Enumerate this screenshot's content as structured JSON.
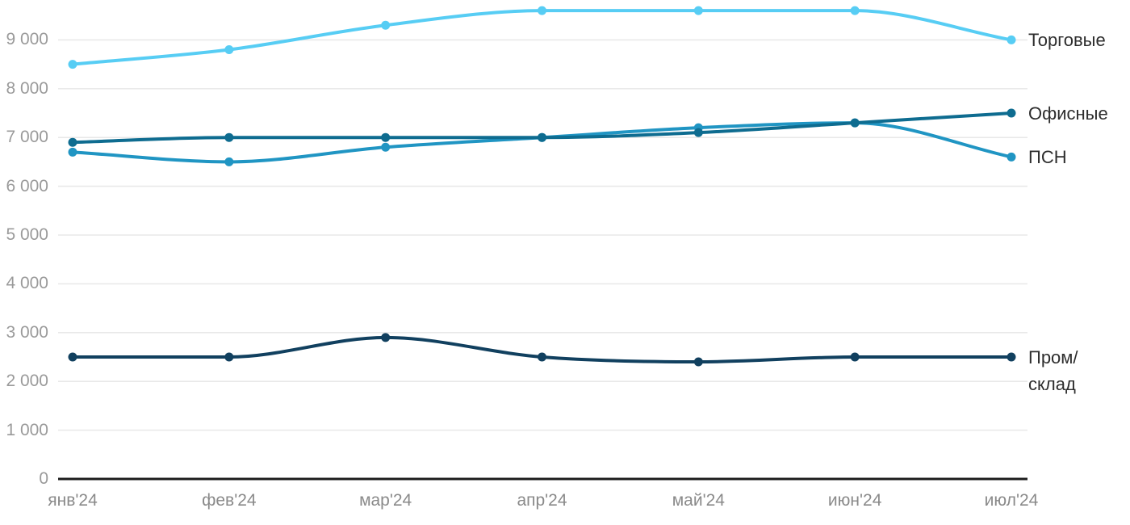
{
  "chart_data": {
    "type": "line",
    "title": "",
    "x_categories": [
      "янв'24",
      "фев'24",
      "мар'24",
      "апр'24",
      "май'24",
      "июн'24",
      "июл'24"
    ],
    "y_ticks": [
      {
        "value": 0,
        "label": "0"
      },
      {
        "value": 1000,
        "label": "1 000"
      },
      {
        "value": 2000,
        "label": "2 000"
      },
      {
        "value": 3000,
        "label": "3 000"
      },
      {
        "value": 4000,
        "label": "4 000"
      },
      {
        "value": 5000,
        "label": "5 000"
      },
      {
        "value": 6000,
        "label": "6 000"
      },
      {
        "value": 7000,
        "label": "7 000"
      },
      {
        "value": 8000,
        "label": "8 000"
      },
      {
        "value": 9000,
        "label": "9 000"
      }
    ],
    "ylim": [
      0,
      9650
    ],
    "grid": "horizontal-only",
    "legend_position": "labels at right ends of lines",
    "series": [
      {
        "name": "Торговые",
        "label_lines": [
          "Торговые"
        ],
        "color": "#57CDF4",
        "values": [
          8500,
          8800,
          9300,
          9600,
          9600,
          9600,
          9000
        ]
      },
      {
        "name": "Офисные",
        "label_lines": [
          "Офисные"
        ],
        "color": "#0E6C90",
        "values": [
          6900,
          7000,
          7000,
          7000,
          7100,
          7300,
          7500
        ]
      },
      {
        "name": "ПСН",
        "label_lines": [
          "ПСН"
        ],
        "color": "#2095C3",
        "values": [
          6700,
          6500,
          6800,
          7000,
          7200,
          7300,
          6600
        ]
      },
      {
        "name": "Пром/склад",
        "label_lines": [
          "Пром/",
          "склад"
        ],
        "color": "#11405F",
        "values": [
          2500,
          2500,
          2900,
          2500,
          2400,
          2500,
          2500
        ]
      }
    ],
    "styles": {
      "grid_color": "#e9e9e9",
      "axis_color": "#1c1c1c",
      "y_label_color": "#9a9a9a",
      "x_label_color": "#8a8a8a",
      "series_label_color": "#2d2d2d",
      "background": "#ffffff"
    }
  }
}
